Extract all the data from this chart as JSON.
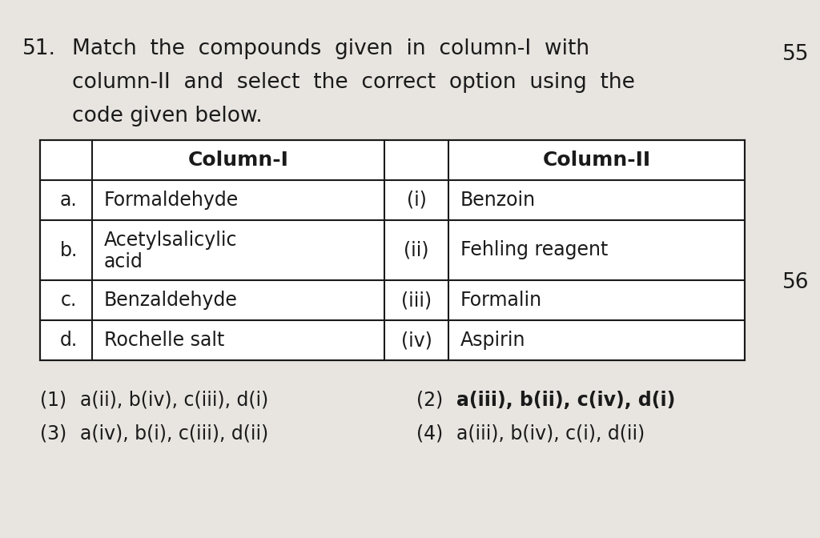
{
  "question_number": "51.",
  "question_lines": [
    "Match  the  compounds  given  in  column-I  with",
    "column-II  and  select  the  correct  option  using  the",
    "code given below."
  ],
  "side_number_top": "55",
  "side_number_bottom": "56",
  "table": {
    "col1_header": "Column-I",
    "col2_header": "Column-II",
    "rows": [
      {
        "label": "a.",
        "col1": "Formaldehyde",
        "num": "(i)",
        "col2": "Benzoin"
      },
      {
        "label": "b.",
        "col1": "Acetylsalicylic\nacid",
        "num": "(ii)",
        "col2": "Fehling reagent"
      },
      {
        "label": "c.",
        "col1": "Benzaldehyde",
        "num": "(iii)",
        "col2": "Formalin"
      },
      {
        "label": "d.",
        "col1": "Rochelle salt",
        "num": "(iv)",
        "col2": "Aspirin"
      }
    ]
  },
  "options": [
    {
      "num": "(1)",
      "text": "a(ii), b(iv), c(iii), d(i)"
    },
    {
      "num": "(2)",
      "text": "a(iii), b(ii), c(iv), d(i)"
    },
    {
      "num": "(3)",
      "text": "a(iv), b(i), c(iii), d(ii)"
    },
    {
      "num": "(4)",
      "text": "a(iii), b(iv), c(i), d(ii)"
    }
  ],
  "bg_color": "#d0ccc8",
  "page_color": "#e8e5e0",
  "table_bg": "#ffffff",
  "text_color": "#1a1a1a",
  "font_size_question": 19,
  "font_size_table": 17,
  "font_size_options": 17
}
